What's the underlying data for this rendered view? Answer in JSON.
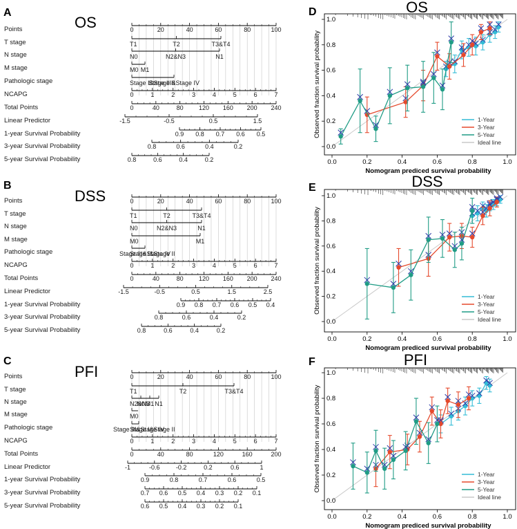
{
  "colors": {
    "year1": "#33bcd6",
    "year3": "#e5492c",
    "year5": "#1f9c85",
    "ideal": "#c8c8c8",
    "grid": "#c6c6c6",
    "cross": "#2b3aa6"
  },
  "nomograms": [
    {
      "panel": "A",
      "title": "OS",
      "rows": [
        {
          "label": "Points",
          "ticks": [
            "0",
            "20",
            "40",
            "60",
            "80",
            "100"
          ]
        },
        {
          "label": "T stage",
          "items": [
            "T1",
            "T2",
            "T3&T4"
          ]
        },
        {
          "label": "N stage",
          "items": [
            "N0",
            "N2&N3",
            "N1"
          ]
        },
        {
          "label": "M stage",
          "items": [
            "M0",
            "M1"
          ]
        },
        {
          "label": "Pathologic stage",
          "items": [
            "Stage I&Stage II",
            "Stage III&Stage IV"
          ]
        },
        {
          "label": "NCAPG",
          "ticks": [
            "0",
            "1",
            "2",
            "3",
            "4",
            "5",
            "6",
            "7"
          ]
        },
        {
          "label": "Total Points",
          "ticks": [
            "0",
            "40",
            "80",
            "120",
            "160",
            "200",
            "240"
          ]
        },
        {
          "label": "Linear Predictor",
          "ticks": [
            "-1.5",
            "-0.5",
            "0.5",
            "1.5"
          ]
        },
        {
          "label": "1-year Survival Probability",
          "ticks": [
            "0.9",
            "0.8",
            "0.7",
            "0.6",
            "0.5"
          ]
        },
        {
          "label": "3-year Survival Probability",
          "ticks": [
            "0.8",
            "0.6",
            "0.4",
            "0.2"
          ]
        },
        {
          "label": "5-year Survival Probability",
          "ticks": [
            "0.8",
            "0.6",
            "0.4",
            "0.2"
          ]
        }
      ]
    },
    {
      "panel": "B",
      "title": "DSS",
      "rows": [
        {
          "label": "Points",
          "ticks": [
            "0",
            "20",
            "40",
            "60",
            "80",
            "100"
          ]
        },
        {
          "label": "T stage",
          "items": [
            "T1",
            "T2",
            "T3&T4"
          ]
        },
        {
          "label": "N stage",
          "items": [
            "N0",
            "N2&N3",
            "N1"
          ]
        },
        {
          "label": "M stage",
          "items": [
            "M0",
            "M1"
          ]
        },
        {
          "label": "Pathologic stage",
          "items": [
            "Stage I&Stage II",
            "Stage III&Stage IV"
          ]
        },
        {
          "label": "NCAPG",
          "ticks": [
            "0",
            "1",
            "2",
            "3",
            "4",
            "5",
            "6",
            "7"
          ]
        },
        {
          "label": "Total Points",
          "ticks": [
            "0",
            "40",
            "80",
            "120",
            "160",
            "200",
            "240"
          ]
        },
        {
          "label": "Linear Predictor",
          "ticks": [
            "-1.5",
            "-0.5",
            "0.5",
            "1.5",
            "2.5"
          ]
        },
        {
          "label": "1-year Survival Probability",
          "ticks": [
            "0.9",
            "0.8",
            "0.7",
            "0.6",
            "0.5",
            "0.4"
          ]
        },
        {
          "label": "3-year Survival Probability",
          "ticks": [
            "0.8",
            "0.6",
            "0.4",
            "0.2"
          ]
        },
        {
          "label": "5-year Survival Probability",
          "ticks": [
            "0.8",
            "0.6",
            "0.4",
            "0.2"
          ]
        }
      ]
    },
    {
      "panel": "C",
      "title": "PFI",
      "rows": [
        {
          "label": "Points",
          "ticks": [
            "0",
            "20",
            "40",
            "60",
            "80",
            "100"
          ]
        },
        {
          "label": "T stage",
          "items": [
            "T1",
            "T2",
            "T3&T4"
          ]
        },
        {
          "label": "N stage",
          "items": [
            "N2&N3",
            "N0",
            "M1",
            "N1"
          ]
        },
        {
          "label": "M stage",
          "items": [
            "M0"
          ]
        },
        {
          "label": "Pathologic stage",
          "items": [
            "Stage I&Stage II",
            "Stage III&Stage IV"
          ]
        },
        {
          "label": "NCAPG",
          "ticks": [
            "0",
            "1",
            "2",
            "3",
            "4",
            "5",
            "6",
            "7"
          ]
        },
        {
          "label": "Total Points",
          "ticks": [
            "0",
            "40",
            "80",
            "120",
            "160",
            "200"
          ]
        },
        {
          "label": "Linear Predictor",
          "ticks": [
            "-1",
            "-0.6",
            "-0.2",
            "0.2",
            "0.6",
            "1"
          ]
        },
        {
          "label": "1-year Survival Probability",
          "ticks": [
            "0.9",
            "0.8",
            "0.7",
            "0.6",
            "0.5"
          ]
        },
        {
          "label": "3-year Survival Probability",
          "ticks": [
            "0.7",
            "0.6",
            "0.5",
            "0.4",
            "0.3",
            "0.2",
            "0.1"
          ]
        },
        {
          "label": "5-year Survival Probability",
          "ticks": [
            "0.6",
            "0.5",
            "0.4",
            "0.3",
            "0.2",
            "0.1"
          ]
        }
      ]
    }
  ],
  "chart_data": [
    {
      "panel": "D",
      "type": "line",
      "title": "OS",
      "xlabel": "Nomogram prediced survival probability",
      "ylabel": "Observed fraction survival probability",
      "xlim": [
        0,
        1.0
      ],
      "ylim": [
        0,
        1.0
      ],
      "xticks": [
        "0.0",
        "0.2",
        "0.4",
        "0.6",
        "0.8",
        "1.0"
      ],
      "yticks": [
        "0.0",
        "0.2",
        "0.4",
        "0.6",
        "0.8",
        "1.0"
      ],
      "legend": [
        "1-Year",
        "3-Year",
        "5-Year",
        "Ideal line"
      ],
      "legend_position": "bottom-right",
      "series": [
        {
          "name": "1-Year",
          "x": [
            0.65,
            0.7,
            0.74,
            0.78,
            0.82,
            0.86,
            0.9,
            0.93,
            0.95
          ],
          "y": [
            0.61,
            0.65,
            0.76,
            0.78,
            0.79,
            0.82,
            0.88,
            0.9,
            0.94
          ],
          "err": [
            0.06,
            0.07,
            0.07,
            0.07,
            0.07,
            0.06,
            0.06,
            0.05,
            0.04
          ]
        },
        {
          "name": "3-Year",
          "x": [
            0.2,
            0.42,
            0.52,
            0.6,
            0.67,
            0.75,
            0.8,
            0.85,
            0.9
          ],
          "y": [
            0.25,
            0.35,
            0.48,
            0.71,
            0.63,
            0.72,
            0.8,
            0.9,
            0.93
          ],
          "err": [
            0.14,
            0.12,
            0.12,
            0.11,
            0.1,
            0.09,
            0.08,
            0.06,
            0.05
          ]
        },
        {
          "name": "5-Year",
          "x": [
            0.05,
            0.16,
            0.25,
            0.33,
            0.43,
            0.52,
            0.58,
            0.63,
            0.68
          ],
          "y": [
            0.08,
            0.36,
            0.14,
            0.4,
            0.46,
            0.47,
            0.54,
            0.45,
            0.82
          ],
          "err": [
            0.06,
            0.25,
            0.1,
            0.22,
            0.18,
            0.2,
            0.2,
            0.16,
            0.16
          ]
        },
        {
          "name": "Ideal line",
          "x": [
            0,
            1
          ],
          "y": [
            0,
            1
          ]
        }
      ]
    },
    {
      "panel": "E",
      "type": "line",
      "title": "DSS",
      "xlabel": "Nomogram prediced survival probability",
      "ylabel": "Observed fraction survival probability",
      "xlim": [
        0,
        1.0
      ],
      "ylim": [
        0,
        1.0
      ],
      "xticks": [
        "0.0",
        "0.2",
        "0.4",
        "0.6",
        "0.8",
        "1.0"
      ],
      "yticks": [
        "0.0",
        "0.2",
        "0.4",
        "0.6",
        "0.8",
        "1.0"
      ],
      "legend": [
        "1-Year",
        "3-Year",
        "5-Year",
        "Ideal line"
      ],
      "legend_position": "bottom-right",
      "series": [
        {
          "name": "1-Year",
          "x": [
            0.8,
            0.83,
            0.86,
            0.88,
            0.9,
            0.92,
            0.94,
            0.96
          ],
          "y": [
            0.84,
            0.86,
            0.9,
            0.88,
            0.92,
            0.93,
            0.95,
            0.97
          ],
          "err": [
            0.06,
            0.06,
            0.05,
            0.05,
            0.04,
            0.04,
            0.03,
            0.03
          ]
        },
        {
          "name": "3-Year",
          "x": [
            0.38,
            0.55,
            0.67,
            0.74,
            0.8,
            0.86,
            0.9,
            0.94
          ],
          "y": [
            0.43,
            0.5,
            0.67,
            0.68,
            0.67,
            0.84,
            0.9,
            0.95
          ],
          "err": [
            0.15,
            0.14,
            0.11,
            0.1,
            0.08,
            0.07,
            0.06,
            0.04
          ]
        },
        {
          "name": "5-Year",
          "x": [
            0.2,
            0.35,
            0.45,
            0.55,
            0.63,
            0.7,
            0.74,
            0.8
          ],
          "y": [
            0.3,
            0.27,
            0.37,
            0.65,
            0.66,
            0.57,
            0.62,
            0.88
          ],
          "err": [
            0.28,
            0.2,
            0.2,
            0.18,
            0.15,
            0.14,
            0.13,
            0.1
          ]
        },
        {
          "name": "Ideal line",
          "x": [
            0,
            1
          ],
          "y": [
            0,
            1
          ]
        }
      ]
    },
    {
      "panel": "F",
      "type": "line",
      "title": "PFI",
      "xlabel": "Nomogram prediced survival probability",
      "ylabel": "Observed fraction survival probability",
      "xlim": [
        0,
        1.0
      ],
      "ylim": [
        0,
        1.0
      ],
      "xticks": [
        "0.0",
        "0.2",
        "0.4",
        "0.6",
        "0.8",
        "1.0"
      ],
      "yticks": [
        "0.0",
        "0.2",
        "0.4",
        "0.6",
        "0.8",
        "1.0"
      ],
      "legend": [
        "1-Year",
        "3-Year",
        "5-Year",
        "Ideal line"
      ],
      "legend_position": "bottom-right",
      "series": [
        {
          "name": "1-Year",
          "x": [
            0.62,
            0.68,
            0.72,
            0.76,
            0.8,
            0.84,
            0.88,
            0.9
          ],
          "y": [
            0.6,
            0.66,
            0.7,
            0.74,
            0.8,
            0.82,
            0.92,
            0.9
          ],
          "err": [
            0.07,
            0.07,
            0.07,
            0.07,
            0.06,
            0.06,
            0.05,
            0.05
          ]
        },
        {
          "name": "3-Year",
          "x": [
            0.25,
            0.33,
            0.43,
            0.5,
            0.57,
            0.62,
            0.66,
            0.72,
            0.78
          ],
          "y": [
            0.25,
            0.38,
            0.4,
            0.5,
            0.7,
            0.6,
            0.78,
            0.75,
            0.8
          ],
          "err": [
            0.14,
            0.13,
            0.12,
            0.12,
            0.11,
            0.11,
            0.1,
            0.1,
            0.09
          ]
        },
        {
          "name": "5-Year",
          "x": [
            0.12,
            0.2,
            0.25,
            0.3,
            0.35,
            0.42,
            0.48,
            0.55,
            0.6
          ],
          "y": [
            0.27,
            0.22,
            0.39,
            0.25,
            0.32,
            0.39,
            0.62,
            0.45,
            0.6
          ],
          "err": [
            0.18,
            0.16,
            0.16,
            0.16,
            0.15,
            0.15,
            0.18,
            0.16,
            0.14
          ]
        },
        {
          "name": "Ideal line",
          "x": [
            0,
            1
          ],
          "y": [
            0,
            1
          ]
        }
      ]
    }
  ]
}
